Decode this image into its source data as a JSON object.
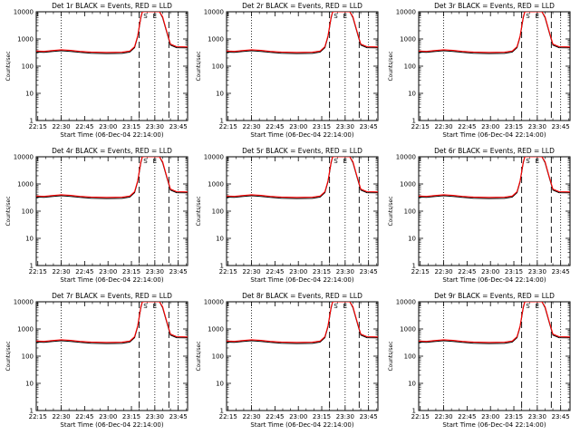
{
  "panels_title_template": "BLACK = Events, RED = LLD",
  "ylabel": "Counts/sec",
  "xlabel": "Start Time (06-Dec-04 22:14:00)",
  "x_tick_labels": [
    "22:15",
    "22:30",
    "22:45",
    "23:00",
    "23:15",
    "23:30",
    "23:45"
  ],
  "y_tick_labels": [
    "1",
    "10",
    "100",
    "1000",
    "10000"
  ],
  "markers": {
    "s": "S",
    "e": "E"
  },
  "colors": {
    "events": "#000000",
    "lld": "#ff0000",
    "axes": "#000000",
    "background": "#ffffff"
  },
  "chart_data": [
    {
      "panel": "det1r",
      "title": "Det 1r BLACK = Events, RED = LLD",
      "xlabel": "Start Time (06-Dec-04 22:14:00)"
    },
    {
      "panel": "det2r",
      "title": "Det 2r BLACK = Events, RED = LLD",
      "xlabel": "Start Time (06-Dec-04 22:14:00)"
    },
    {
      "panel": "det3r",
      "title": "Det 3r BLACK = Events, RED = LLD",
      "xlabel": "Start Time (06-Dec-04 22:14:00)"
    },
    {
      "panel": "det4r",
      "title": "Det 4r BLACK = Events, RED = LLD",
      "xlabel": "Start Time (06-Dec-04 22:14:00)"
    },
    {
      "panel": "det5r",
      "title": "Det 5r BLACK = Events, RED = LLD",
      "xlabel": "Start Time (06-Dec-04 22:14:00)"
    },
    {
      "panel": "det6r",
      "title": "Det 6r BLACK = Events, RED = LLD",
      "xlabel": "Start Time (06-Dec-04 22:14:00)"
    },
    {
      "panel": "det7r",
      "title": "Det 7r BLACK = Events, RED = LLD",
      "xlabel": "Start Time (06-Dec-04 22:14:00)"
    },
    {
      "panel": "det8r",
      "title": "Det 8r BLACK = Events, RED = LLD",
      "xlabel": "Start Time (06-Dec-04 22:14:00)"
    },
    {
      "panel": "det9r",
      "title": "Det 9r BLACK = Events, RED = LLD",
      "xlabel": "Start Time (06-Dec-04 22:14:00)"
    }
  ],
  "series_shape": {
    "type": "line",
    "yscale": "log",
    "ylim": [
      1,
      10000
    ],
    "xlim_minutes_after_22_14": [
      0,
      97
    ],
    "dotted_lines_min": [
      16,
      76,
      91
    ],
    "dashed_lines_min": [
      66,
      85
    ],
    "events_curve": [
      [
        0,
        330
      ],
      [
        5,
        320
      ],
      [
        10,
        345
      ],
      [
        16,
        370
      ],
      [
        22,
        350
      ],
      [
        28,
        320
      ],
      [
        35,
        300
      ],
      [
        45,
        290
      ],
      [
        55,
        295
      ],
      [
        60,
        330
      ],
      [
        63,
        480
      ],
      [
        65,
        1200
      ],
      [
        67,
        6000
      ],
      [
        68,
        10000
      ],
      [
        79,
        10000
      ],
      [
        81,
        6000
      ],
      [
        84,
        1500
      ],
      [
        86,
        600
      ],
      [
        90,
        480
      ],
      [
        97,
        470
      ]
    ],
    "lld_curve": [
      [
        0,
        360
      ],
      [
        5,
        350
      ],
      [
        10,
        375
      ],
      [
        16,
        400
      ],
      [
        22,
        380
      ],
      [
        28,
        350
      ],
      [
        35,
        330
      ],
      [
        45,
        320
      ],
      [
        55,
        325
      ],
      [
        60,
        360
      ],
      [
        63,
        520
      ],
      [
        65,
        1300
      ],
      [
        67,
        6500
      ],
      [
        68,
        10000
      ],
      [
        79,
        10000
      ],
      [
        81,
        6500
      ],
      [
        84,
        1600
      ],
      [
        86,
        650
      ],
      [
        90,
        520
      ],
      [
        97,
        510
      ]
    ],
    "s_marker_min": 70,
    "e_marker_min": 76
  }
}
